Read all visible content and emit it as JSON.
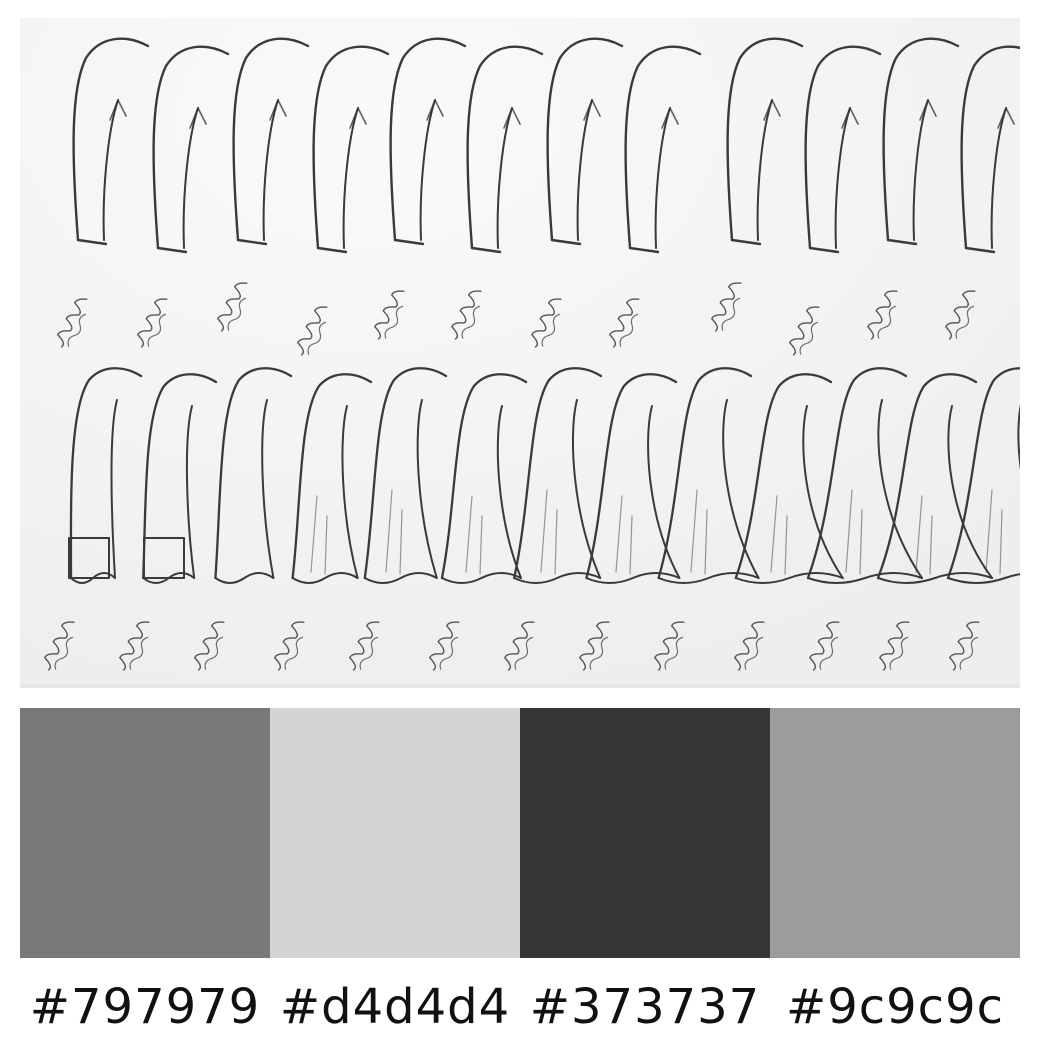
{
  "image": {
    "description_name": "sleeve-style-sketches"
  },
  "palette": {
    "swatches": [
      {
        "hex": "#797979",
        "label": "#797979"
      },
      {
        "hex": "#d4d4d4",
        "label": "#d4d4d4"
      },
      {
        "hex": "#373737",
        "label": "#373737"
      },
      {
        "hex": "#9c9c9c",
        "label": "#9c9c9c"
      }
    ]
  }
}
